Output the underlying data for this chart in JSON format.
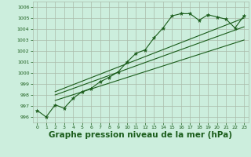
{
  "xlabel": "Graphe pression niveau de la mer (hPa)",
  "xlabel_fontsize": 7.5,
  "xlim": [
    -0.5,
    23.5
  ],
  "ylim": [
    995.5,
    1006.5
  ],
  "yticks": [
    996,
    997,
    998,
    999,
    1000,
    1001,
    1002,
    1003,
    1004,
    1005,
    1006
  ],
  "xticks": [
    0,
    1,
    2,
    3,
    4,
    5,
    6,
    7,
    8,
    9,
    10,
    11,
    12,
    13,
    14,
    15,
    16,
    17,
    18,
    19,
    20,
    21,
    22,
    23
  ],
  "bg_color": "#cceedd",
  "grid_color": "#aabbaa",
  "line_color": "#1a5c1a",
  "pressure_data": [
    996.6,
    996.0,
    997.1,
    996.8,
    997.7,
    998.3,
    998.6,
    999.2,
    999.6,
    1000.1,
    1001.0,
    1001.8,
    1002.1,
    1003.2,
    1004.1,
    1005.2,
    1005.4,
    1005.4,
    1004.8,
    1005.3,
    1005.1,
    1004.9,
    1004.1,
    1005.2
  ],
  "trend1": [
    2,
    997.5,
    23,
    1003.0
  ],
  "trend2": [
    2,
    998.0,
    23,
    1004.2
  ],
  "trend3": [
    2,
    998.3,
    23,
    1005.0
  ]
}
